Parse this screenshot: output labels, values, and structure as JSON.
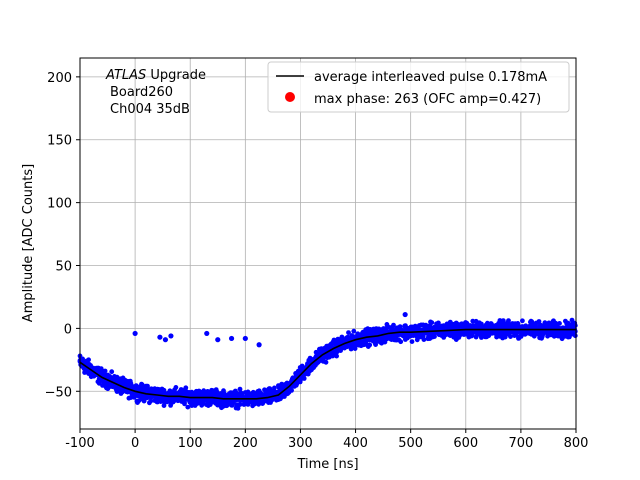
{
  "chart_data": {
    "type": "scatter",
    "xlabel": "Time [ns]",
    "ylabel": "Amplitude [ADC Counts]",
    "xlim": [
      -100,
      800
    ],
    "ylim": [
      -80,
      215
    ],
    "xticks": [
      "-100",
      "0",
      "100",
      "200",
      "300",
      "400",
      "500",
      "600",
      "700",
      "800"
    ],
    "xtick_values": [
      -100,
      0,
      100,
      200,
      300,
      400,
      500,
      600,
      700,
      800
    ],
    "yticks": [
      "−50",
      "0",
      "50",
      "100",
      "150",
      "200"
    ],
    "ytick_values": [
      -50,
      0,
      50,
      100,
      150,
      200
    ],
    "grid": true,
    "legend_position": "top-right",
    "annotation": {
      "line1_italic": "ATLAS",
      "line1_rest": " Upgrade",
      "line2": "Board260",
      "line3": "Ch004 35dB"
    },
    "series": [
      {
        "name": "average interleaved pulse 0.178mA",
        "kind": "line",
        "color": "#000000",
        "x": [
          -100,
          -80,
          -60,
          -40,
          -20,
          0,
          20,
          40,
          60,
          80,
          100,
          120,
          140,
          160,
          180,
          200,
          220,
          240,
          260,
          280,
          300,
          320,
          340,
          360,
          380,
          400,
          420,
          440,
          460,
          480,
          500,
          550,
          600,
          650,
          700,
          750,
          800
        ],
        "y": [
          -27,
          -33,
          -39,
          -43,
          -47,
          -50,
          -52,
          -53,
          -54,
          -54,
          -55,
          -55,
          -55,
          -56,
          -56,
          -56,
          -56,
          -55,
          -53,
          -46,
          -37,
          -28,
          -21,
          -16,
          -12,
          -9,
          -7,
          -6,
          -4,
          -3,
          -3,
          -2,
          -1,
          -1,
          -1,
          -1,
          -1
        ]
      },
      {
        "name": "max phase: 263 (OFC amp=0.427)",
        "kind": "scatter",
        "color": "#ff0000"
      },
      {
        "name": "",
        "kind": "scatter-band",
        "color": "#0000ff",
        "spread": 9
      },
      {
        "name": "",
        "kind": "scatter",
        "color": "#0000ff",
        "x": [
          0,
          45,
          55,
          65,
          130,
          150,
          175,
          200,
          225,
          490
        ],
        "y": [
          -4,
          -7,
          -9,
          -6,
          -4,
          -9,
          -8,
          -8,
          -13,
          11
        ]
      }
    ]
  }
}
